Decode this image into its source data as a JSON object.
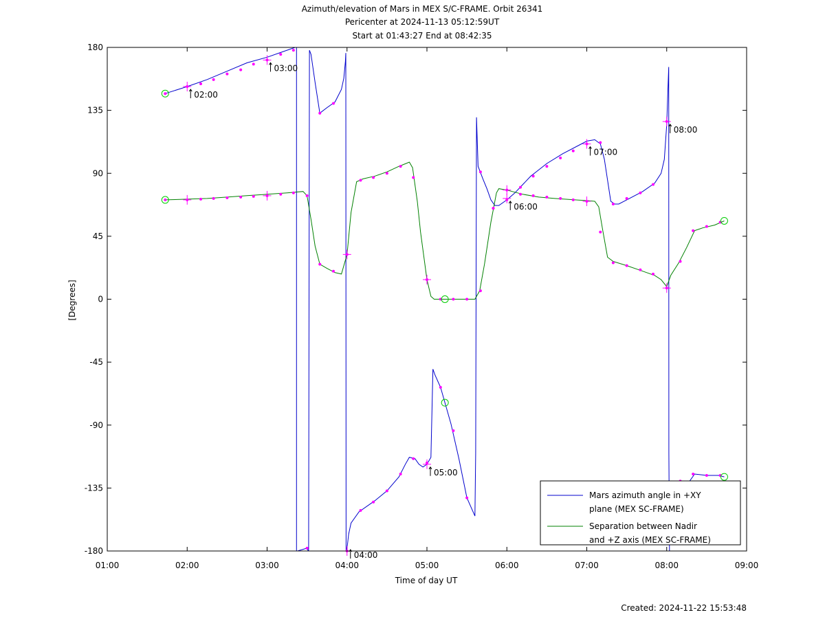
{
  "chart_data": {
    "type": "line",
    "title": [
      "Azimuth/elevation of Mars in MEX S/C-FRAME.  Orbit 26341",
      "Pericenter at 2024-11-13 05:12:59UT",
      "Start at 01:43:27 End at 08:42:35"
    ],
    "xlabel": "Time of day UT",
    "ylabel": "[Degrees]",
    "xlim": [
      1.0,
      9.0
    ],
    "ylim": [
      -180,
      180
    ],
    "x_ticks": [
      1,
      2,
      3,
      4,
      5,
      6,
      7,
      8,
      9
    ],
    "x_tick_labels": [
      "01:00",
      "02:00",
      "03:00",
      "04:00",
      "05:00",
      "06:00",
      "07:00",
      "08:00",
      "09:00"
    ],
    "y_ticks": [
      180,
      135,
      90,
      45,
      0,
      -45,
      -90,
      -135,
      -180
    ],
    "y_tick_labels": [
      "180",
      "135",
      "90",
      "45",
      "0",
      "-45",
      "-90",
      "-135",
      "-180"
    ],
    "legend_position": "bottom-right",
    "series": [
      {
        "name": "Mars azimuth angle in +XY plane (MEX SC-FRAME)",
        "legend_lines": [
          "Mars azimuth angle in +XY",
          "plane (MEX SC-FRAME)"
        ],
        "color": "#0000cc",
        "segments": [
          [
            [
              1.725,
              147
            ],
            [
              2.0,
              152
            ],
            [
              2.25,
              157
            ],
            [
              2.5,
              163
            ],
            [
              2.75,
              169
            ],
            [
              3.0,
              173
            ],
            [
              3.2,
              177
            ],
            [
              3.35,
              180
            ]
          ],
          [
            [
              3.368,
              180
            ],
            [
              3.368,
              -180
            ]
          ],
          [
            [
              3.38,
              -180
            ],
            [
              3.5,
              -178
            ],
            [
              3.515,
              -180
            ]
          ],
          [
            [
              3.52,
              -180
            ],
            [
              3.53,
              178
            ],
            [
              3.55,
              175
            ],
            [
              3.6,
              155
            ],
            [
              3.66,
              133
            ],
            [
              3.75,
              137
            ],
            [
              3.85,
              141
            ],
            [
              3.93,
              150
            ],
            [
              3.96,
              158
            ],
            [
              3.98,
              170
            ],
            [
              3.985,
              176
            ],
            [
              3.988,
              -180
            ]
          ],
          [
            [
              3.99,
              -180
            ],
            [
              4.0,
              -178
            ],
            [
              4.02,
              -168
            ],
            [
              4.05,
              -160
            ],
            [
              4.15,
              -152
            ],
            [
              4.35,
              -144
            ],
            [
              4.5,
              -137
            ],
            [
              4.65,
              -127
            ],
            [
              4.73,
              -118
            ],
            [
              4.78,
              -113
            ],
            [
              4.85,
              -114
            ],
            [
              4.9,
              -118
            ],
            [
              4.95,
              -120
            ],
            [
              5.0,
              -118
            ],
            [
              5.05,
              -113
            ],
            [
              5.075,
              -50
            ],
            [
              5.1,
              -54
            ],
            [
              5.17,
              -63
            ],
            [
              5.3,
              -89
            ],
            [
              5.4,
              -114
            ],
            [
              5.5,
              -142
            ],
            [
              5.6,
              -155
            ],
            [
              5.61,
              -110
            ],
            [
              5.62,
              130
            ],
            [
              5.64,
              95
            ],
            [
              5.7,
              86
            ],
            [
              5.75,
              79
            ],
            [
              5.8,
              71
            ],
            [
              5.85,
              67
            ],
            [
              5.9,
              67
            ],
            [
              6.0,
              71
            ],
            [
              6.1,
              76
            ],
            [
              6.2,
              82
            ],
            [
              6.3,
              88
            ],
            [
              6.5,
              97
            ],
            [
              6.7,
              104
            ],
            [
              6.9,
              110
            ],
            [
              7.0,
              113
            ],
            [
              7.1,
              114
            ],
            [
              7.17,
              111
            ],
            [
              7.22,
              100
            ],
            [
              7.3,
              70
            ],
            [
              7.35,
              68
            ],
            [
              7.4,
              68
            ],
            [
              7.5,
              71
            ],
            [
              7.7,
              77
            ],
            [
              7.85,
              83
            ],
            [
              7.93,
              90
            ],
            [
              7.97,
              100
            ],
            [
              8.0,
              125
            ],
            [
              8.015,
              150
            ],
            [
              8.025,
              166
            ],
            [
              8.027,
              -110
            ],
            [
              8.035,
              -180
            ]
          ],
          [
            [
              8.25,
              -133
            ],
            [
              8.35,
              -125
            ],
            [
              8.5,
              -126
            ],
            [
              8.65,
              -126
            ],
            [
              8.72,
              -127
            ]
          ]
        ],
        "sample_points": [
          [
            1.725,
            147
          ],
          [
            2.0,
            152
          ],
          [
            2.17,
            154
          ],
          [
            2.33,
            157
          ],
          [
            2.5,
            161
          ],
          [
            2.67,
            164
          ],
          [
            2.83,
            168
          ],
          [
            3.0,
            171
          ],
          [
            3.17,
            175
          ],
          [
            3.33,
            178
          ],
          [
            3.5,
            -178
          ],
          [
            3.66,
            133
          ],
          [
            3.83,
            140
          ],
          [
            4.0,
            -180
          ],
          [
            4.17,
            -151
          ],
          [
            4.33,
            -145
          ],
          [
            4.5,
            -137
          ],
          [
            4.67,
            -125
          ],
          [
            4.83,
            -114
          ],
          [
            5.0,
            -117
          ],
          [
            5.17,
            -63
          ],
          [
            5.33,
            -94
          ],
          [
            5.5,
            -142
          ],
          [
            5.67,
            91
          ],
          [
            5.83,
            65
          ],
          [
            6.0,
            71
          ],
          [
            6.17,
            80
          ],
          [
            6.33,
            88
          ],
          [
            6.5,
            95
          ],
          [
            6.67,
            101
          ],
          [
            6.83,
            106
          ],
          [
            7.0,
            111
          ],
          [
            7.17,
            112
          ],
          [
            7.33,
            68
          ],
          [
            7.5,
            72
          ],
          [
            7.67,
            76
          ],
          [
            7.83,
            82
          ],
          [
            8.0,
            127
          ],
          [
            8.17,
            -130
          ],
          [
            8.33,
            -125
          ],
          [
            8.5,
            -126
          ],
          [
            8.67,
            -126
          ]
        ],
        "hour_marks": [
          [
            2.0,
            152
          ],
          [
            3.0,
            171
          ],
          [
            4.0,
            -180
          ],
          [
            5.0,
            -118
          ],
          [
            6.0,
            72
          ],
          [
            7.0,
            111
          ],
          [
            8.0,
            127
          ]
        ],
        "endpoints": [
          [
            1.725,
            147
          ],
          [
            5.225,
            -74
          ],
          [
            8.72,
            -127
          ]
        ]
      },
      {
        "name": "Separation between Nadir and +Z axis (MEX SC-FRAME)",
        "legend_lines": [
          "Separation between Nadir",
          "and +Z axis (MEX SC-FRAME)"
        ],
        "color": "#008000",
        "segments": [
          [
            [
              1.725,
              71
            ],
            [
              2.0,
              71.5
            ],
            [
              2.25,
              72
            ],
            [
              2.5,
              73
            ],
            [
              2.75,
              74
            ],
            [
              3.0,
              75
            ],
            [
              3.25,
              76
            ],
            [
              3.45,
              77
            ],
            [
              3.5,
              74
            ],
            [
              3.55,
              57
            ],
            [
              3.6,
              38
            ],
            [
              3.66,
              25
            ],
            [
              3.75,
              22
            ],
            [
              3.85,
              19
            ],
            [
              3.93,
              18
            ],
            [
              4.0,
              32
            ],
            [
              4.05,
              62
            ],
            [
              4.12,
              84
            ],
            [
              4.2,
              86
            ],
            [
              4.35,
              88
            ],
            [
              4.5,
              91
            ],
            [
              4.65,
              95
            ],
            [
              4.78,
              98
            ],
            [
              4.82,
              94
            ],
            [
              4.88,
              70
            ],
            [
              4.92,
              48
            ],
            [
              5.0,
              14
            ],
            [
              5.05,
              2
            ],
            [
              5.09,
              0
            ],
            [
              5.2,
              0
            ],
            [
              5.4,
              0
            ],
            [
              5.5,
              0
            ],
            [
              5.6,
              0
            ],
            [
              5.66,
              6
            ],
            [
              5.72,
              25
            ],
            [
              5.8,
              55
            ],
            [
              5.87,
              76
            ],
            [
              5.9,
              79
            ],
            [
              6.0,
              78
            ],
            [
              6.2,
              75
            ],
            [
              6.4,
              73
            ],
            [
              6.6,
              72
            ],
            [
              6.85,
              71
            ],
            [
              7.0,
              70.5
            ],
            [
              7.1,
              70
            ],
            [
              7.15,
              66
            ],
            [
              7.2,
              49
            ],
            [
              7.26,
              30
            ],
            [
              7.33,
              27
            ],
            [
              7.5,
              24
            ],
            [
              7.65,
              21
            ],
            [
              7.85,
              17
            ],
            [
              7.93,
              14
            ],
            [
              8.0,
              9
            ],
            [
              8.05,
              17
            ],
            [
              8.15,
              26
            ],
            [
              8.25,
              37
            ],
            [
              8.35,
              49
            ],
            [
              8.45,
              51
            ],
            [
              8.6,
              53
            ],
            [
              8.72,
              56
            ]
          ]
        ],
        "sample_points": [
          [
            1.725,
            71
          ],
          [
            2.0,
            71
          ],
          [
            2.17,
            71.5
          ],
          [
            2.33,
            72
          ],
          [
            2.5,
            72.5
          ],
          [
            2.67,
            73
          ],
          [
            2.83,
            73.5
          ],
          [
            3.0,
            74
          ],
          [
            3.17,
            75
          ],
          [
            3.33,
            76
          ],
          [
            3.5,
            74
          ],
          [
            3.66,
            25
          ],
          [
            3.83,
            20
          ],
          [
            4.0,
            32
          ],
          [
            4.17,
            85
          ],
          [
            4.33,
            87
          ],
          [
            4.5,
            90
          ],
          [
            4.67,
            95
          ],
          [
            4.83,
            87
          ],
          [
            5.0,
            14
          ],
          [
            5.17,
            0
          ],
          [
            5.33,
            0
          ],
          [
            5.5,
            0
          ],
          [
            5.67,
            6
          ],
          [
            5.83,
            65
          ],
          [
            6.0,
            78
          ],
          [
            6.17,
            75
          ],
          [
            6.33,
            74
          ],
          [
            6.5,
            73
          ],
          [
            6.67,
            72
          ],
          [
            6.83,
            71
          ],
          [
            7.0,
            70
          ],
          [
            7.17,
            48
          ],
          [
            7.33,
            26
          ],
          [
            7.5,
            24
          ],
          [
            7.67,
            21
          ],
          [
            7.83,
            18
          ],
          [
            8.0,
            8
          ],
          [
            8.17,
            27
          ],
          [
            8.33,
            49
          ],
          [
            8.5,
            52
          ],
          [
            8.67,
            55
          ]
        ],
        "hour_marks": [
          [
            2.0,
            71
          ],
          [
            3.0,
            74
          ],
          [
            4.0,
            32
          ],
          [
            5.0,
            14
          ],
          [
            6.0,
            78
          ],
          [
            7.0,
            70
          ],
          [
            8.0,
            8
          ]
        ],
        "endpoints": [
          [
            1.725,
            71
          ],
          [
            5.225,
            0
          ],
          [
            8.72,
            56
          ]
        ]
      }
    ],
    "hour_annotations": [
      {
        "label": "02:00",
        "x": 2.0,
        "y": 152
      },
      {
        "label": "03:00",
        "x": 3.0,
        "y": 171
      },
      {
        "label": "04:00",
        "x": 4.0,
        "y": -180
      },
      {
        "label": "05:00",
        "x": 5.0,
        "y": -118
      },
      {
        "label": "06:00",
        "x": 6.0,
        "y": 72
      },
      {
        "label": "07:00",
        "x": 7.0,
        "y": 111
      },
      {
        "label": "08:00",
        "x": 8.0,
        "y": 127
      }
    ],
    "point_color": "#ff00ff",
    "endpoint_color": "#00cc00"
  },
  "footer": {
    "created": "Created: 2024-11-22 15:53:48"
  }
}
